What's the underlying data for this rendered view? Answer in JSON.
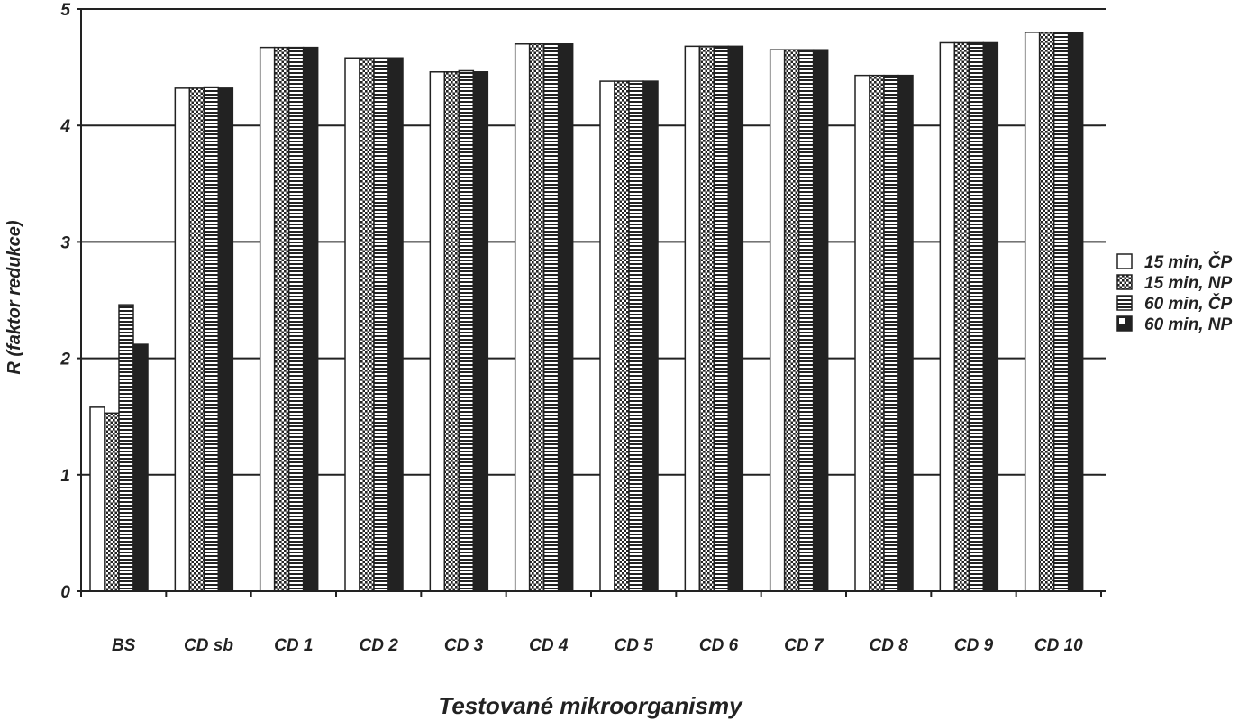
{
  "chart_data": {
    "type": "bar",
    "title": "",
    "xlabel": "Testované mikroorganismy",
    "ylabel": "R (faktor redukce)",
    "ylim": [
      0,
      5
    ],
    "yticks": [
      "0",
      "1",
      "2",
      "3",
      "4",
      "5"
    ],
    "grid": true,
    "legend_position": "right",
    "categories": [
      "BS",
      "CD sb",
      "CD 1",
      "CD 2",
      "CD 3",
      "CD 4",
      "CD 5",
      "CD 6",
      "CD 7",
      "CD 8",
      "CD 9",
      "CD 10"
    ],
    "series": [
      {
        "name": "15 min, ČP",
        "pattern": "white",
        "values": [
          1.58,
          4.32,
          4.67,
          4.58,
          4.46,
          4.7,
          4.38,
          4.68,
          4.65,
          4.43,
          4.71,
          4.8
        ]
      },
      {
        "name": "15 min, NP",
        "pattern": "dots",
        "values": [
          1.53,
          4.32,
          4.67,
          4.58,
          4.46,
          4.7,
          4.38,
          4.68,
          4.65,
          4.43,
          4.71,
          4.8
        ]
      },
      {
        "name": "60 min, ČP",
        "pattern": "hlines",
        "values": [
          2.46,
          4.33,
          4.67,
          4.58,
          4.47,
          4.7,
          4.38,
          4.68,
          4.65,
          4.43,
          4.71,
          4.8
        ]
      },
      {
        "name": "60 min, NP",
        "pattern": "dark",
        "values": [
          2.12,
          4.32,
          4.67,
          4.58,
          4.46,
          4.7,
          4.38,
          4.68,
          4.65,
          4.43,
          4.71,
          4.8
        ]
      }
    ]
  }
}
